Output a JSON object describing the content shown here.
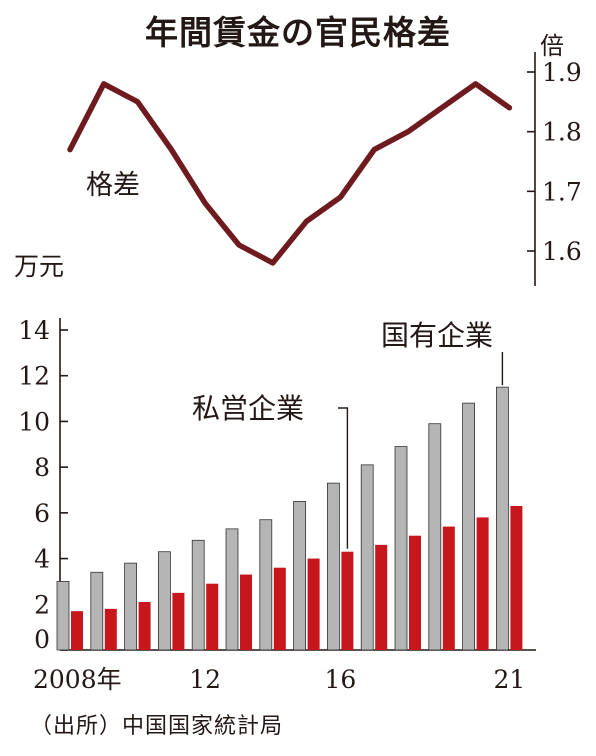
{
  "title": "年間賃金の官民格差",
  "source": "（出所）中国国家統計局",
  "chart_data": [
    {
      "type": "line",
      "title": "年間賃金の官民格差",
      "series": [
        {
          "name": "格差",
          "values": [
            1.77,
            1.88,
            1.85,
            1.77,
            1.68,
            1.61,
            1.58,
            1.65,
            1.69,
            1.77,
            1.8,
            1.84,
            1.88,
            1.84
          ]
        }
      ],
      "x": [
        2008,
        2009,
        2010,
        2011,
        2012,
        2013,
        2014,
        2015,
        2016,
        2017,
        2018,
        2019,
        2020,
        2021
      ],
      "ylabel": "倍",
      "ylim": [
        1.55,
        1.92
      ],
      "yticks": [
        "1.9",
        "1.8",
        "1.7",
        "1.6"
      ],
      "yticks_values": [
        1.9,
        1.8,
        1.7,
        1.6
      ],
      "line_color": "#6e1a1f"
    },
    {
      "type": "bar",
      "categories": [
        2008,
        2009,
        2010,
        2011,
        2012,
        2013,
        2014,
        2015,
        2016,
        2017,
        2018,
        2019,
        2020,
        2021
      ],
      "xtick_labels": [
        {
          "value": 2008,
          "label": "2008年"
        },
        {
          "value": 2012,
          "label": "12"
        },
        {
          "value": 2016,
          "label": "16"
        },
        {
          "value": 2021,
          "label": "21"
        }
      ],
      "series": [
        {
          "name": "国有企業",
          "color": "#b5b5b5",
          "values": [
            3.0,
            3.4,
            3.8,
            4.3,
            4.8,
            5.3,
            5.7,
            6.5,
            7.3,
            8.1,
            8.9,
            9.9,
            10.8,
            11.5
          ]
        },
        {
          "name": "私営企業",
          "color": "#c8161d",
          "values": [
            1.7,
            1.8,
            2.1,
            2.5,
            2.9,
            3.3,
            3.6,
            4.0,
            4.3,
            4.6,
            5.0,
            5.4,
            5.8,
            6.3
          ]
        }
      ],
      "ylabel": "万元",
      "ylim": [
        0,
        14
      ],
      "yticks": [
        "0",
        "2",
        "4",
        "6",
        "8",
        "10",
        "12",
        "14"
      ],
      "yticks_values": [
        0,
        2,
        4,
        6,
        8,
        10,
        12,
        14
      ],
      "annotations": [
        {
          "text": "国有企業",
          "points_to": 2021
        },
        {
          "text": "私営企業",
          "points_to": 2016
        }
      ]
    }
  ]
}
